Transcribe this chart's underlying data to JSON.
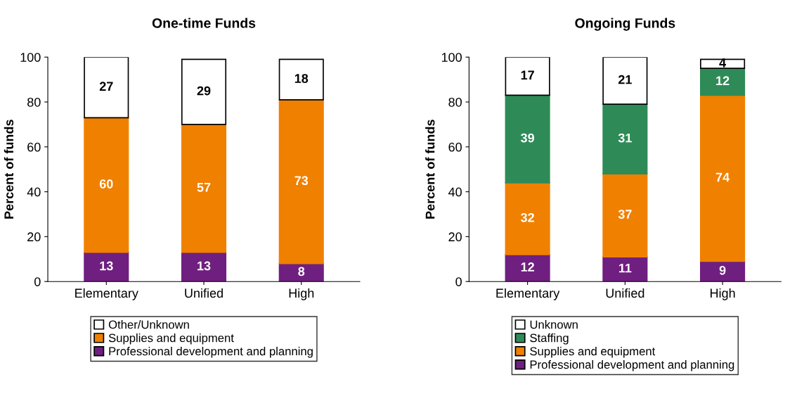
{
  "chart_data": [
    {
      "type": "bar",
      "title": "One-time Funds",
      "ylabel": "Percent of funds",
      "categories": [
        "Elementary",
        "Unified",
        "High"
      ],
      "stacked": true,
      "data_labels": true,
      "legend": "bottom",
      "grid": false,
      "ylim": [
        0,
        100
      ],
      "yticks": [
        0,
        20,
        40,
        60,
        80,
        100
      ],
      "series": [
        {
          "name": "Professional development and planning",
          "color": "#6f1f7f",
          "values": [
            13,
            13,
            8
          ]
        },
        {
          "name": "Supplies and equipment",
          "color": "#f08000",
          "values": [
            60,
            57,
            73
          ]
        },
        {
          "name": "Other/Unknown",
          "color": "#ffffff",
          "values": [
            27,
            29,
            18
          ]
        }
      ]
    },
    {
      "type": "bar",
      "title": "Ongoing Funds",
      "ylabel": "Percent of funds",
      "categories": [
        "Elementary",
        "Unified",
        "High"
      ],
      "stacked": true,
      "data_labels": true,
      "legend": "bottom",
      "grid": false,
      "ylim": [
        0,
        100
      ],
      "yticks": [
        0,
        20,
        40,
        60,
        80,
        100
      ],
      "series": [
        {
          "name": "Professional development and planning",
          "color": "#6f1f7f",
          "values": [
            12,
            11,
            9
          ]
        },
        {
          "name": "Supplies and equipment",
          "color": "#f08000",
          "values": [
            32,
            37,
            74
          ]
        },
        {
          "name": "Staffing",
          "color": "#2e8b57",
          "values": [
            39,
            31,
            12
          ]
        },
        {
          "name": "Unknown",
          "color": "#ffffff",
          "values": [
            17,
            21,
            4
          ]
        }
      ]
    }
  ]
}
